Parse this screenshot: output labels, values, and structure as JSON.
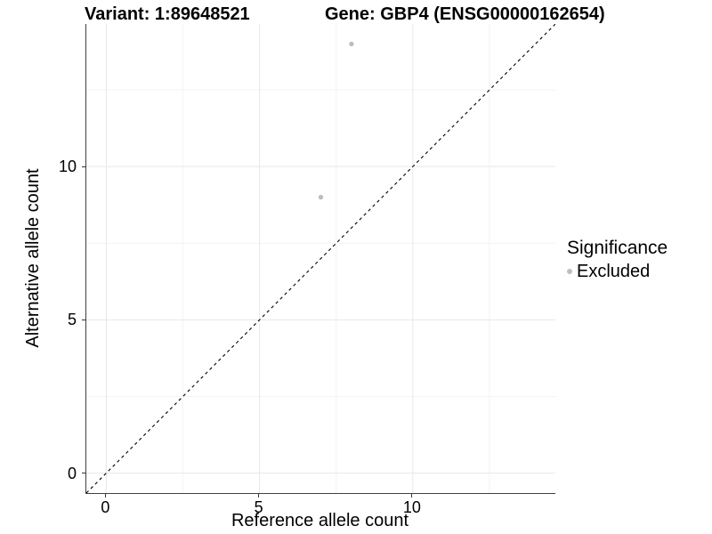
{
  "header": {
    "variant_title": "Variant: 1:89648521",
    "gene_title": "Gene: GBP4 (ENSG00000162654)"
  },
  "chart_data": {
    "type": "scatter",
    "xlabel": "Reference allele count",
    "ylabel": "Alternative allele count",
    "xlim": [
      -0.65,
      14.65
    ],
    "ylim": [
      -0.65,
      14.65
    ],
    "x_ticks": [
      0,
      5,
      10
    ],
    "y_ticks": [
      0,
      5,
      10
    ],
    "x_minor_ticks": [
      2.5,
      7.5,
      12.5
    ],
    "y_minor_ticks": [
      2.5,
      7.5,
      12.5
    ],
    "grid": true,
    "series": [
      {
        "name": "Excluded",
        "color": "#bebebe",
        "point_radius": 2.7,
        "points": [
          [
            7,
            9
          ],
          [
            8,
            14
          ]
        ]
      }
    ],
    "reference_line": {
      "type": "identity",
      "style": "dashed",
      "color": "#000000",
      "dash": "3.5,3.5"
    },
    "legend": {
      "title": "Significance",
      "position": "right",
      "items": [
        {
          "label": "Excluded",
          "color": "#bebebe"
        }
      ]
    }
  },
  "colors": {
    "background": "#ffffff",
    "axis_line": "#3f3f3f",
    "tick_mark": "#333333",
    "grid_major": "#e8e8e8",
    "grid_minor": "#f3f3f3",
    "text": "#000000",
    "excluded_point": "#bebebe"
  }
}
